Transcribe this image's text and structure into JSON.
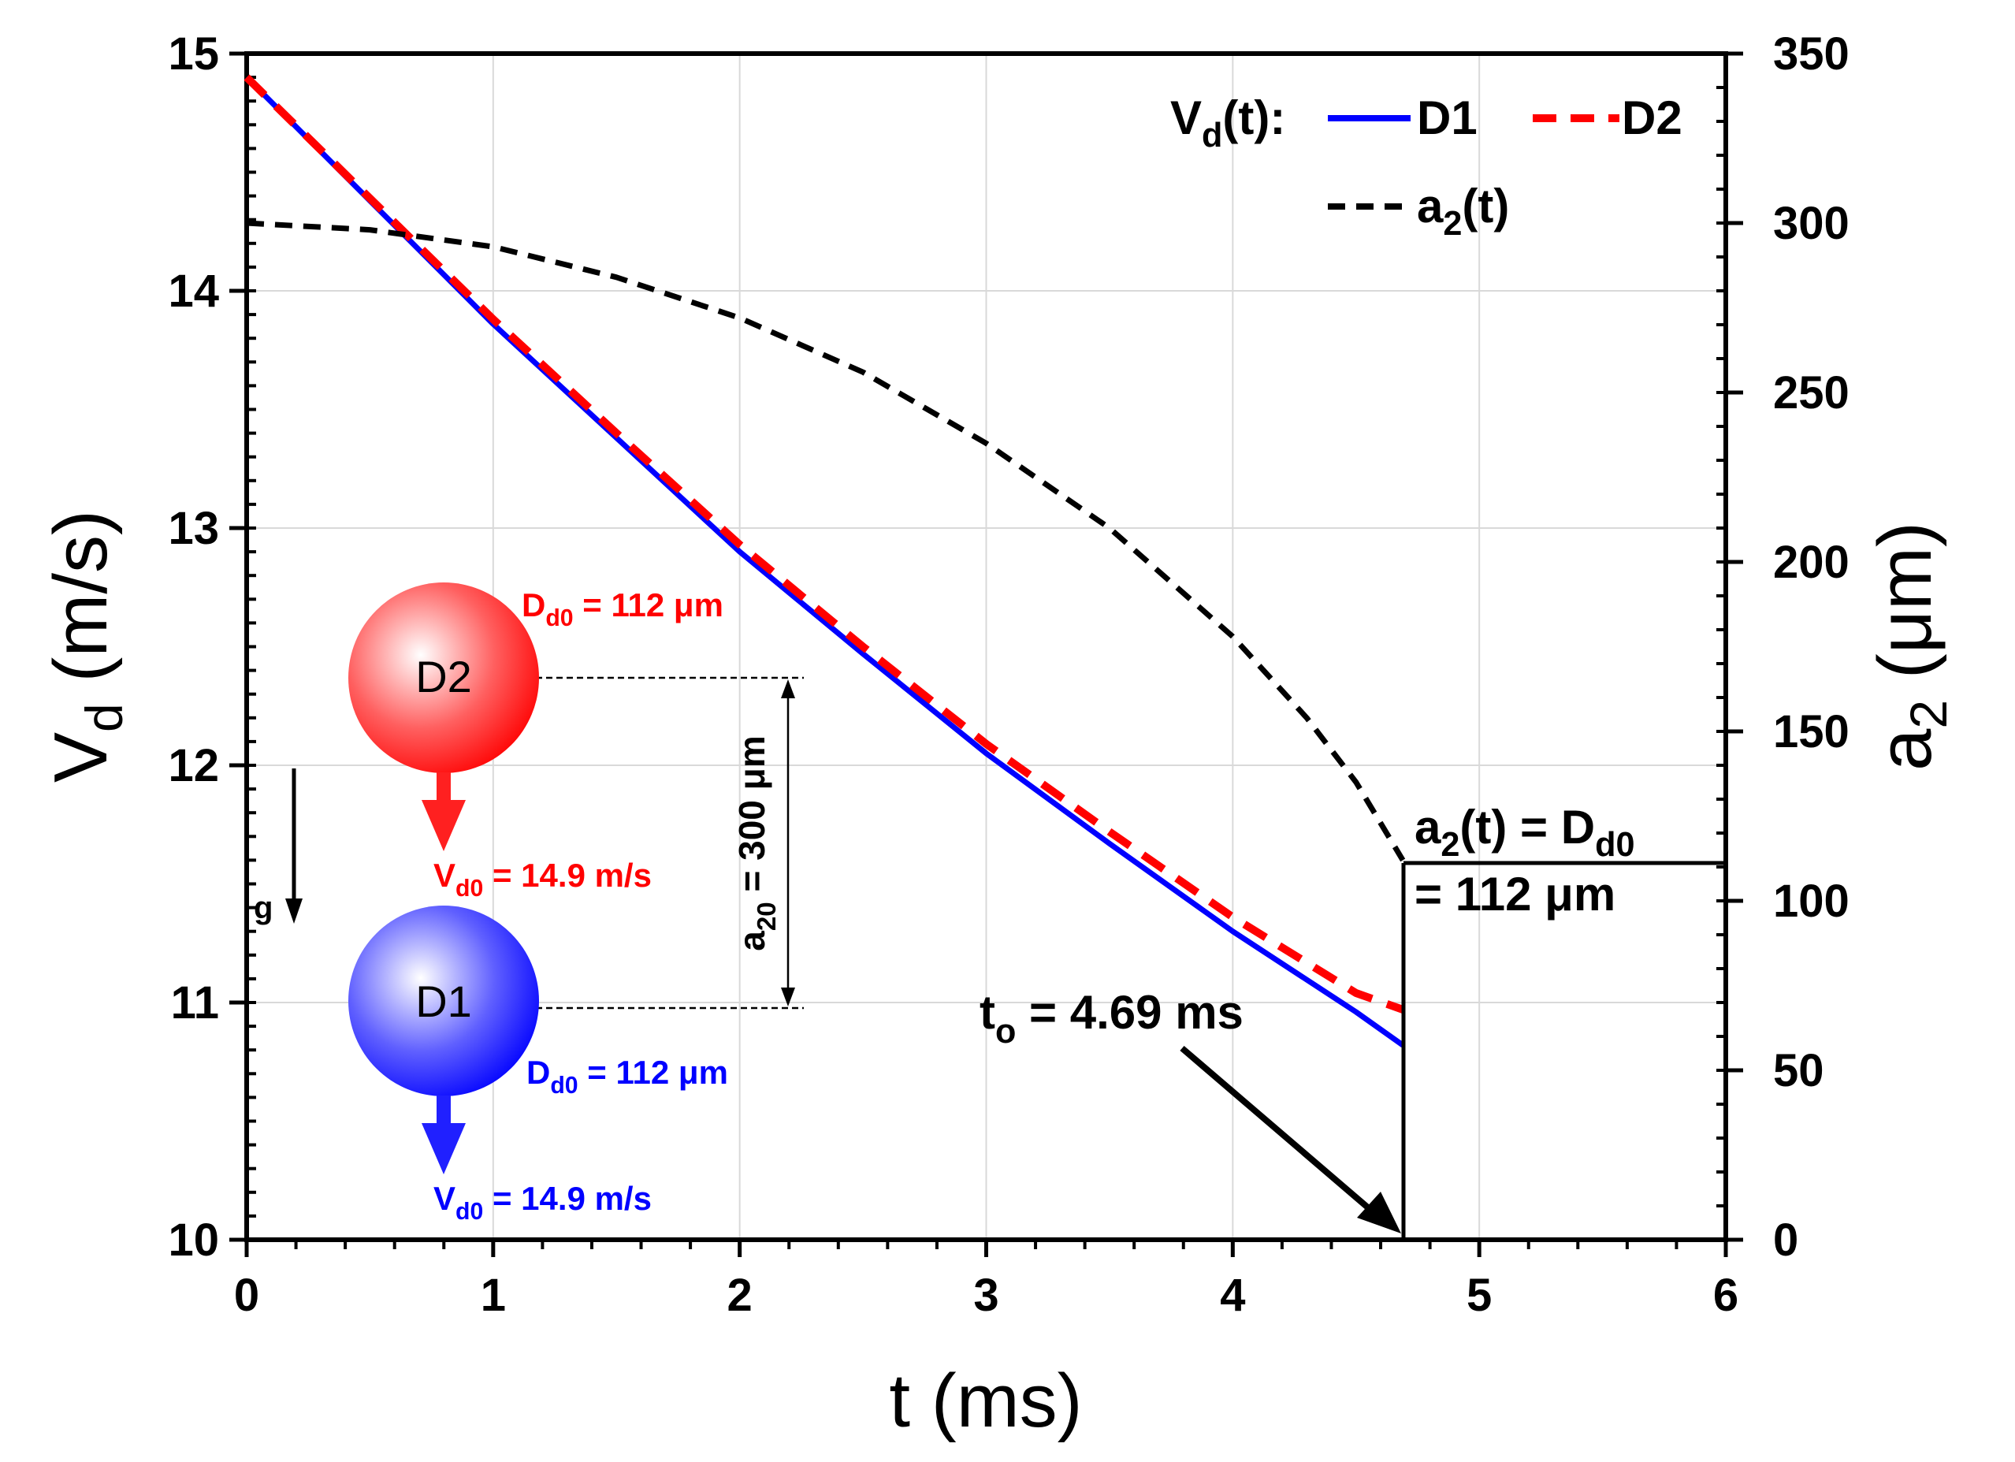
{
  "chart_data": {
    "type": "line",
    "title": "",
    "xlabel": "t (ms)",
    "ylabel_left": {
      "main": "V",
      "sub": "d",
      "rest": " (m/s)"
    },
    "ylabel_right": {
      "main": "a",
      "sub": "2",
      "rest": " (μm)"
    },
    "xlim": [
      0,
      6
    ],
    "ylim_left": [
      10,
      15
    ],
    "ylim_right": [
      0,
      350
    ],
    "x_ticks": [
      "0",
      "1",
      "2",
      "3",
      "4",
      "5",
      "6"
    ],
    "y_left_ticks": [
      "10",
      "11",
      "12",
      "13",
      "14",
      "15"
    ],
    "y_right_ticks": [
      "0",
      "50",
      "100",
      "150",
      "200",
      "250",
      "300",
      "350"
    ],
    "grid": true,
    "series": [
      {
        "name": "D1",
        "axis": "left",
        "color": "#0000ff",
        "style": "solid",
        "x": [
          0,
          0.5,
          1,
          1.5,
          2,
          2.5,
          3,
          3.5,
          4,
          4.5,
          4.69
        ],
        "y": [
          14.9,
          14.38,
          13.86,
          13.38,
          12.9,
          12.47,
          12.05,
          11.67,
          11.3,
          10.96,
          10.82
        ]
      },
      {
        "name": "D2",
        "axis": "left",
        "color": "#ff0000",
        "style": "dashed",
        "x": [
          0,
          0.5,
          1,
          1.5,
          2,
          2.5,
          3,
          3.5,
          4,
          4.5,
          4.69
        ],
        "y": [
          14.9,
          14.39,
          13.88,
          13.4,
          12.93,
          12.5,
          12.09,
          11.72,
          11.36,
          11.04,
          10.97
        ]
      },
      {
        "name": "a2(t)",
        "axis": "right",
        "color": "#000000",
        "style": "dashed",
        "x": [
          0,
          0.5,
          1,
          1.5,
          2,
          2.5,
          3,
          3.5,
          4,
          4.3,
          4.5,
          4.69
        ],
        "y": [
          300,
          298,
          293,
          284,
          272,
          256,
          235,
          210,
          178,
          154,
          135,
          112
        ]
      }
    ],
    "legend": {
      "position": "top-right",
      "group_label": {
        "main": "V",
        "sub": "d",
        "rest": "(t):"
      },
      "entries": [
        {
          "label": "D1",
          "color": "#0000ff",
          "style": "solid"
        },
        {
          "label": "D2",
          "color": "#ff0000",
          "style": "dashed"
        },
        {
          "label": {
            "main": "a",
            "sub": "2",
            "rest": "(t)"
          },
          "color": "#000000",
          "style": "dashed"
        }
      ]
    },
    "annotations": {
      "t_o_label": {
        "main": "t",
        "sub": "o",
        "rest": " = 4.69 ms"
      },
      "t_o_value": 4.69,
      "a2_threshold_line1": {
        "main": "a",
        "sub": "2",
        "mid": "(t) = D",
        "sub2": "d0"
      },
      "a2_threshold_line2": "= 112 μm",
      "a2_threshold_value": 112,
      "droplets": {
        "D2": {
          "label": "D2",
          "diameter": {
            "main": "D",
            "sub": "d0",
            "rest": " = 112 μm"
          },
          "velocity": {
            "main": "V",
            "sub": "d0",
            "rest": " = 14.9 m/s"
          },
          "color": "#ff2020"
        },
        "D1": {
          "label": "D1",
          "diameter": {
            "main": "D",
            "sub": "d0",
            "rest": " = 112 μm"
          },
          "velocity": {
            "main": "V",
            "sub": "d0",
            "rest": " = 14.9 m/s"
          },
          "color": "#2020ff"
        }
      },
      "spacing": {
        "main": "a",
        "sub": "20",
        "rest": " = 300 μm"
      },
      "gravity": "g"
    }
  }
}
